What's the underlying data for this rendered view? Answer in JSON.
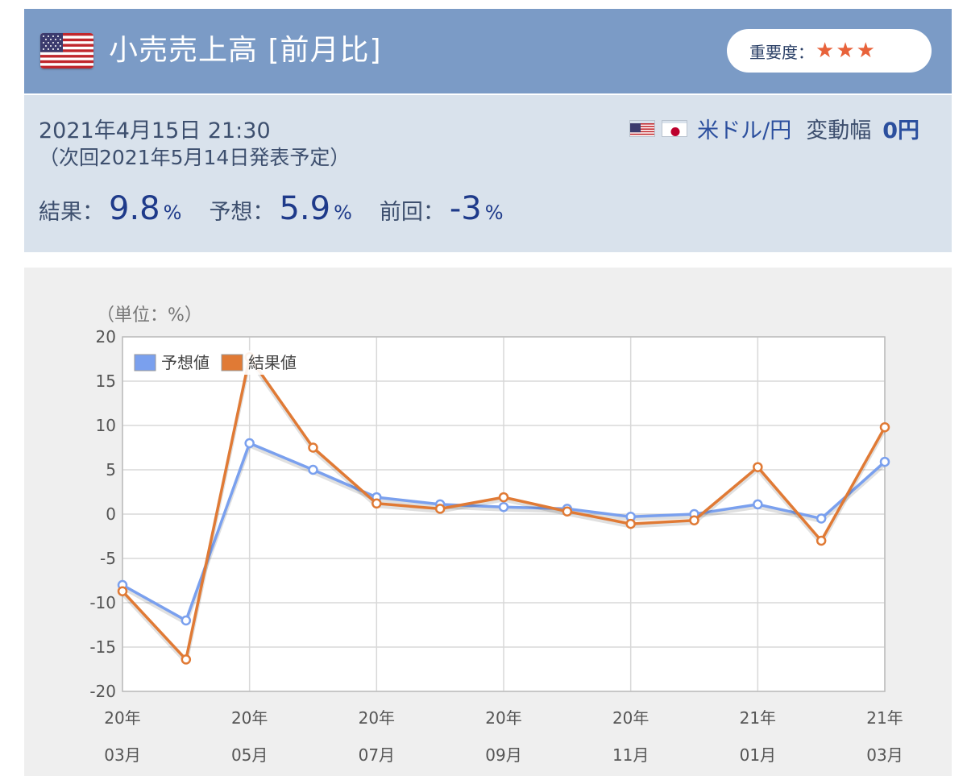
{
  "header": {
    "title": "小売売上高 [前月比]",
    "importance_label": "重要度：",
    "importance_stars": 3,
    "star_color": "#e8623a",
    "flag_icon": "us-flag-icon"
  },
  "release": {
    "datetime": "2021年4月15日 21:30",
    "next_release": "（次回2021年5月14日発表予定）"
  },
  "currency_pair": {
    "flags": [
      "us-flag-icon",
      "jp-flag-icon"
    ],
    "name": "米ドル/円",
    "range_label": "変動幅",
    "range_value": "0円"
  },
  "stats": {
    "result_label": "結果：",
    "result_value": "9.8",
    "result_unit": "%",
    "forecast_label": "予想：",
    "forecast_value": "5.9",
    "forecast_unit": "%",
    "previous_label": "前回：",
    "previous_value": "-3",
    "previous_unit": "%"
  },
  "colors": {
    "header_bg": "#7b9bc6",
    "info_bg": "#d9e2ec",
    "forecast_line": "#7aa0ee",
    "result_line": "#e07a35"
  },
  "chart_data": {
    "type": "line",
    "unit_label": "（単位：%）",
    "ylim": [
      -20,
      20
    ],
    "yticks": [
      20,
      15,
      10,
      5,
      0,
      -5,
      -10,
      -15,
      -20
    ],
    "x": [
      "20-03",
      "20-04",
      "20-05",
      "20-06",
      "20-07",
      "20-08",
      "20-09",
      "20-10",
      "20-11",
      "20-12",
      "21-01",
      "21-02",
      "21-03"
    ],
    "xtick_labels": [
      {
        "index": 0,
        "year": "20年",
        "month": "03月"
      },
      {
        "index": 2,
        "year": "20年",
        "month": "05月"
      },
      {
        "index": 4,
        "year": "20年",
        "month": "07月"
      },
      {
        "index": 6,
        "year": "20年",
        "month": "09月"
      },
      {
        "index": 8,
        "year": "20年",
        "month": "11月"
      },
      {
        "index": 10,
        "year": "21年",
        "month": "01月"
      },
      {
        "index": 12,
        "year": "21年",
        "month": "03月"
      }
    ],
    "legend_position": "top-left",
    "grid": true,
    "series": [
      {
        "name": "予想値",
        "color": "#7aa0ee",
        "values": [
          -8.0,
          -12.0,
          8.0,
          5.0,
          1.9,
          1.1,
          0.8,
          0.6,
          -0.3,
          0.0,
          1.1,
          -0.5,
          5.9
        ]
      },
      {
        "name": "結果値",
        "color": "#e07a35",
        "values": [
          -8.7,
          -16.4,
          17.7,
          7.5,
          1.2,
          0.6,
          1.9,
          0.3,
          -1.1,
          -0.7,
          5.3,
          -3.0,
          9.8
        ]
      }
    ]
  }
}
